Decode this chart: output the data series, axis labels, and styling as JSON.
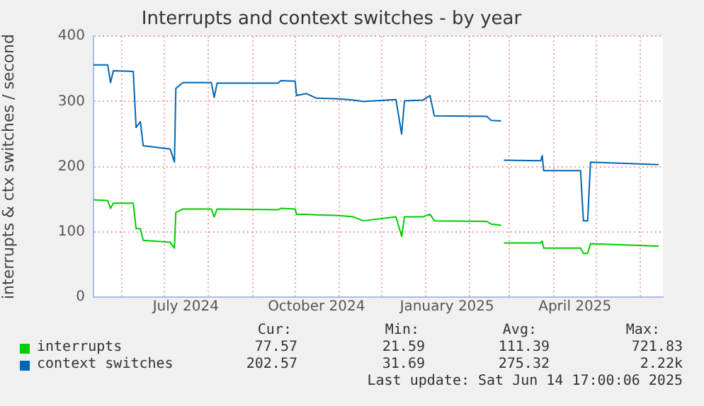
{
  "chart_data": {
    "type": "line",
    "title": "Interrupts and context switches - by year",
    "ylabel": "interrupts & ctx switches / second",
    "x": [
      "2024-05-12",
      "2024-05-22",
      "2024-05-24",
      "2024-05-26",
      "2024-06-09",
      "2024-06-11",
      "2024-06-14",
      "2024-06-16",
      "2024-07-05",
      "2024-07-08",
      "2024-07-09",
      "2024-07-14",
      "2024-08-03",
      "2024-08-05",
      "2024-08-07",
      "2024-09-19",
      "2024-09-21",
      "2024-10-01",
      "2024-10-02",
      "2024-10-09",
      "2024-10-16",
      "2024-11-01",
      "2024-11-11",
      "2024-11-18",
      "2024-12-11",
      "2024-12-15",
      "2024-12-17",
      "2024-12-30",
      "2025-01-04",
      "2025-01-07",
      "2025-02-13",
      "2025-02-16",
      "2025-02-23",
      "2025-02-24",
      "2025-02-25",
      "2025-03-23",
      "2025-03-24",
      "2025-03-25",
      "2025-04-20",
      "2025-04-22",
      "2025-04-25",
      "2025-04-27",
      "2025-06-14"
    ],
    "series": [
      {
        "name": "interrupts",
        "color": "#00cc00",
        "values": [
          149,
          148,
          136,
          144,
          144,
          105,
          105,
          87,
          84,
          75,
          130,
          135,
          135,
          123,
          135,
          134,
          136,
          135,
          127,
          127,
          126,
          125,
          123,
          117,
          123,
          93,
          123,
          123,
          127,
          117,
          116,
          112,
          110,
          null,
          83,
          83,
          86,
          75,
          75,
          67,
          67,
          82,
          78
        ]
      },
      {
        "name": "context switches",
        "color": "#0066b3",
        "values": [
          356,
          356,
          329,
          347,
          346,
          260,
          269,
          232,
          227,
          207,
          320,
          329,
          329,
          306,
          328,
          328,
          332,
          331,
          309,
          312,
          305,
          304,
          302,
          300,
          303,
          250,
          301,
          302,
          309,
          278,
          277,
          271,
          270,
          null,
          210,
          209,
          217,
          194,
          194,
          117,
          117,
          207,
          203
        ]
      }
    ],
    "xlim": [
      "2024-05-12",
      "2025-06-17"
    ],
    "xticks": [
      {
        "value": "2024-06-01",
        "label": null
      },
      {
        "value": "2024-07-01",
        "label": null
      },
      {
        "value": "2024-07-16",
        "label": "July 2024"
      },
      {
        "value": "2024-08-01",
        "label": null
      },
      {
        "value": "2024-09-01",
        "label": null
      },
      {
        "value": "2024-10-01",
        "label": null
      },
      {
        "value": "2024-10-16",
        "label": "October 2024"
      },
      {
        "value": "2024-11-01",
        "label": null
      },
      {
        "value": "2024-12-01",
        "label": null
      },
      {
        "value": "2025-01-01",
        "label": null
      },
      {
        "value": "2025-01-16",
        "label": "January 2025"
      },
      {
        "value": "2025-02-01",
        "label": null
      },
      {
        "value": "2025-03-01",
        "label": null
      },
      {
        "value": "2025-04-01",
        "label": null
      },
      {
        "value": "2025-04-16",
        "label": "April 2025"
      },
      {
        "value": "2025-05-01",
        "label": null
      },
      {
        "value": "2025-06-01",
        "label": null
      }
    ],
    "ylim": [
      0,
      400
    ],
    "yticks": [
      0,
      100,
      200,
      300,
      400
    ],
    "grid": true,
    "legend": "bottom",
    "marker": "none",
    "line_style": "solid",
    "annotations": [
      "Cur:",
      "Min:",
      "Avg:",
      "Max:",
      "77.57",
      "21.59",
      "111.39",
      "721.83",
      "202.57",
      "31.69",
      "275.32",
      "2.22k",
      "Last update: Sat Jun 14 17:00:06 2025"
    ]
  }
}
